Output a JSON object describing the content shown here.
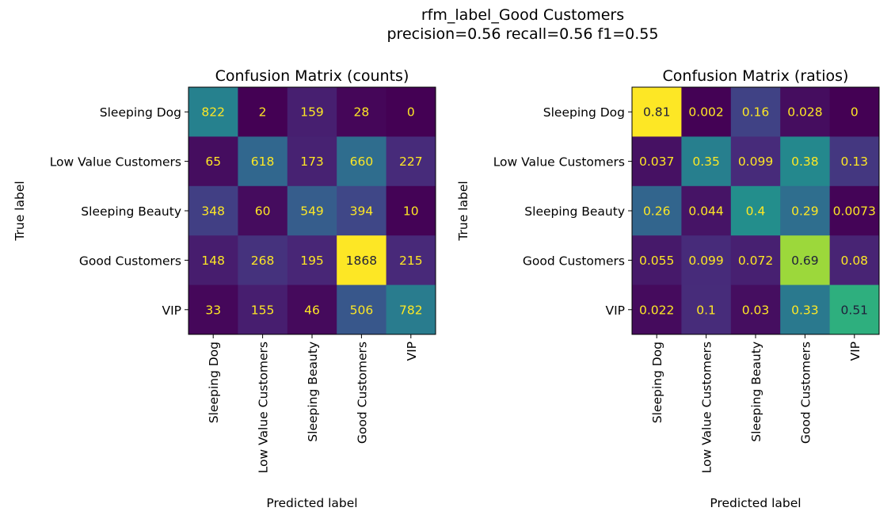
{
  "suptitle": {
    "line1": "rfm_label_Good Customers",
    "line2": "precision=0.56 recall=0.56 f1=0.55"
  },
  "chart_data": [
    {
      "type": "heatmap",
      "title": "Confusion Matrix (counts)",
      "xlabel": "Predicted label",
      "ylabel": "True label",
      "categories": [
        "Sleeping Dog",
        "Low Value Customers",
        "Sleeping Beauty",
        "Good Customers",
        "VIP"
      ],
      "values": [
        [
          822,
          2,
          159,
          28,
          0
        ],
        [
          65,
          618,
          173,
          660,
          227
        ],
        [
          348,
          60,
          549,
          394,
          10
        ],
        [
          148,
          268,
          195,
          1868,
          215
        ],
        [
          33,
          155,
          46,
          506,
          782
        ]
      ],
      "value_labels": [
        [
          "822",
          "2",
          "159",
          "28",
          "0"
        ],
        [
          "65",
          "618",
          "173",
          "660",
          "227"
        ],
        [
          "348",
          "60",
          "549",
          "394",
          "10"
        ],
        [
          "148",
          "268",
          "195",
          "1868",
          "215"
        ],
        [
          "33",
          "155",
          "46",
          "506",
          "782"
        ]
      ],
      "colormap": "viridis",
      "vmin": 0,
      "vmax": 1868
    },
    {
      "type": "heatmap",
      "title": "Confusion Matrix (ratios)",
      "xlabel": "Predicted label",
      "ylabel": "True label",
      "categories": [
        "Sleeping Dog",
        "Low Value Customers",
        "Sleeping Beauty",
        "Good Customers",
        "VIP"
      ],
      "values": [
        [
          0.81,
          0.002,
          0.16,
          0.028,
          0
        ],
        [
          0.037,
          0.35,
          0.099,
          0.38,
          0.13
        ],
        [
          0.26,
          0.044,
          0.4,
          0.29,
          0.0073
        ],
        [
          0.055,
          0.099,
          0.072,
          0.69,
          0.08
        ],
        [
          0.022,
          0.1,
          0.03,
          0.33,
          0.51
        ]
      ],
      "value_labels": [
        [
          "0.81",
          "0.002",
          "0.16",
          "0.028",
          "0"
        ],
        [
          "0.037",
          "0.35",
          "0.099",
          "0.38",
          "0.13"
        ],
        [
          "0.26",
          "0.044",
          "0.4",
          "0.29",
          "0.0073"
        ],
        [
          "0.055",
          "0.099",
          "0.072",
          "0.69",
          "0.08"
        ],
        [
          "0.022",
          "0.1",
          "0.03",
          "0.33",
          "0.51"
        ]
      ],
      "colormap": "viridis",
      "vmin": 0,
      "vmax": 0.81
    }
  ]
}
